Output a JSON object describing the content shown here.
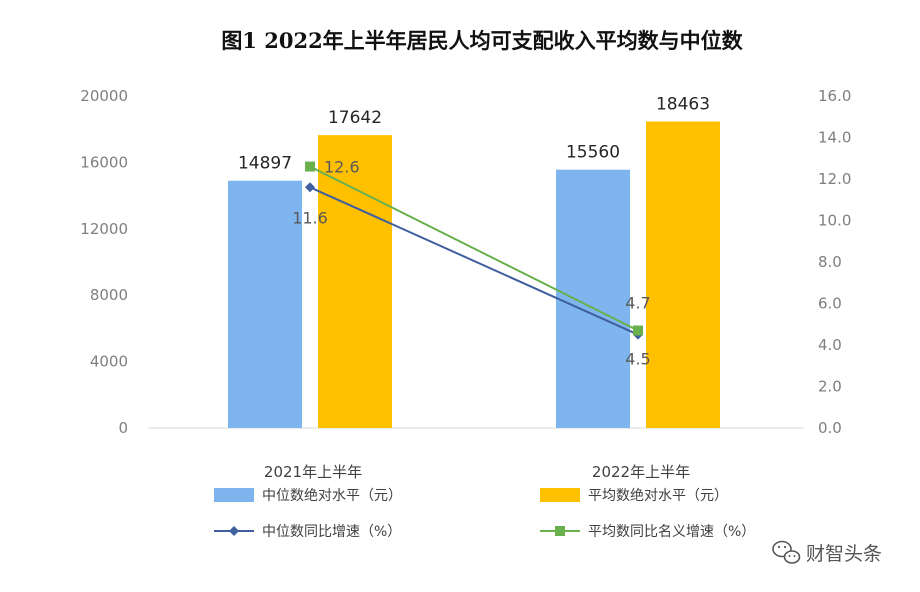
{
  "chart_data": {
    "type": "bar",
    "title": "图1   2022年上半年居民人均可支配收入平均数与中位数",
    "categories": [
      "2021年上半年",
      "2022年上半年"
    ],
    "y_left": {
      "ylim": [
        0,
        20000
      ],
      "ticks": [
        "0",
        "4000",
        "8000",
        "12000",
        "16000",
        "20000"
      ]
    },
    "y_right": {
      "ylim": [
        0,
        16
      ],
      "ticks": [
        "0.0",
        "2.0",
        "4.0",
        "6.0",
        "8.0",
        "10.0",
        "12.0",
        "14.0",
        "16.0"
      ]
    },
    "grid": false,
    "legend_position": "bottom",
    "series": [
      {
        "name": "中位数绝对水平（元）",
        "kind": "bar",
        "axis": "left",
        "color": "#7eb5ef",
        "values": [
          14897,
          15560
        ],
        "labels": [
          "14897",
          "15560"
        ]
      },
      {
        "name": "平均数绝对水平（元）",
        "kind": "bar",
        "axis": "left",
        "color": "#ffc000",
        "values": [
          17642,
          18463
        ],
        "labels": [
          "17642",
          "18463"
        ]
      },
      {
        "name": "中位数同比增速（%）",
        "kind": "line",
        "axis": "right",
        "color": "#3f5f9f",
        "marker": "diamond",
        "values": [
          11.6,
          4.5
        ],
        "labels": [
          "11.6",
          "4.5"
        ]
      },
      {
        "name": "平均数同比名义增速（%）",
        "kind": "line",
        "axis": "right",
        "color": "#6ab04c",
        "marker": "square",
        "values": [
          12.6,
          4.7
        ],
        "labels": [
          "12.6",
          "4.7"
        ]
      }
    ]
  },
  "watermark": {
    "text": "财智头条",
    "icon": "wechat-icon"
  }
}
